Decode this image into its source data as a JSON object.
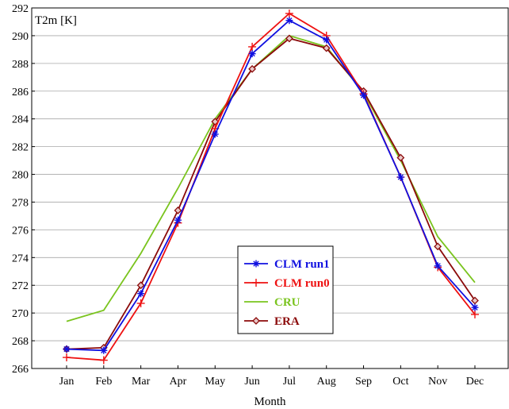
{
  "chart_data": {
    "type": "line",
    "title": "",
    "ylabel": "T2m [K]",
    "xlabel": "Month",
    "categories": [
      "Jan",
      "Feb",
      "Mar",
      "Apr",
      "May",
      "Jun",
      "Jul",
      "Aug",
      "Sep",
      "Oct",
      "Nov",
      "Dec"
    ],
    "ylim": [
      266,
      292
    ],
    "yticks": [
      266,
      268,
      270,
      272,
      274,
      276,
      278,
      280,
      282,
      284,
      286,
      288,
      290,
      292
    ],
    "grid": "horizontal",
    "legend_position": "bottom-center",
    "series": [
      {
        "name": "CLM run1",
        "color": "#1010e0",
        "marker": "asterisk",
        "values": [
          267.4,
          267.3,
          271.4,
          276.7,
          282.9,
          288.7,
          291.1,
          289.7,
          285.7,
          279.8,
          273.4,
          270.4
        ]
      },
      {
        "name": "CLM run0",
        "color": "#ee1111",
        "marker": "plus",
        "values": [
          266.8,
          266.6,
          270.7,
          276.5,
          283.3,
          289.2,
          291.6,
          290.0,
          285.8,
          279.8,
          273.3,
          269.9
        ]
      },
      {
        "name": "CRU",
        "color": "#7ac41e",
        "marker": "none",
        "values": [
          269.4,
          270.2,
          274.3,
          279.0,
          284.0,
          287.6,
          290.0,
          289.2,
          285.9,
          281.0,
          275.5,
          272.2
        ]
      },
      {
        "name": "ERA",
        "color": "#8b0a0a",
        "marker": "diamond",
        "values": [
          267.4,
          267.5,
          272.0,
          277.4,
          283.8,
          287.6,
          289.8,
          289.1,
          286.0,
          281.2,
          274.8,
          270.9
        ]
      }
    ]
  }
}
